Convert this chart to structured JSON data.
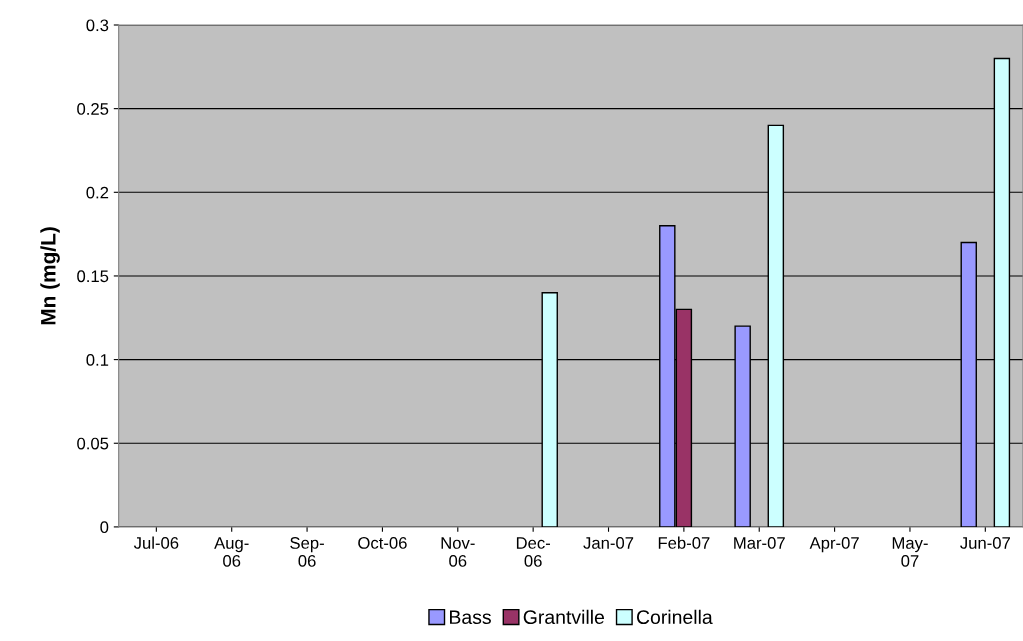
{
  "chart_data": {
    "type": "bar",
    "ylabel": "Mn (mg/L)",
    "categories": [
      "Jul-06",
      "Aug-\n06",
      "Sep-\n06",
      "Oct-06",
      "Nov-\n06",
      "Dec-\n06",
      "Jan-07",
      "Feb-07",
      "Mar-07",
      "Apr-07",
      "May-\n07",
      "Jun-07"
    ],
    "series": [
      {
        "name": "Bass",
        "color": "#9999ff",
        "values": [
          null,
          null,
          null,
          null,
          null,
          null,
          null,
          0.18,
          0.12,
          null,
          null,
          0.17
        ]
      },
      {
        "name": "Grantville",
        "color": "#993366",
        "values": [
          null,
          null,
          null,
          null,
          null,
          null,
          null,
          0.13,
          null,
          null,
          null,
          null
        ]
      },
      {
        "name": "Corinella",
        "color": "#ccffff",
        "values": [
          null,
          null,
          null,
          null,
          null,
          0.14,
          null,
          null,
          0.24,
          null,
          null,
          0.28
        ]
      }
    ],
    "ylim": [
      0,
      0.3
    ],
    "yticks": [
      {
        "value": 0,
        "label": "0"
      },
      0.05,
      0.1,
      0.15,
      0.2,
      0.25,
      0.3
    ],
    "grid": "y",
    "legend": "bottom"
  }
}
